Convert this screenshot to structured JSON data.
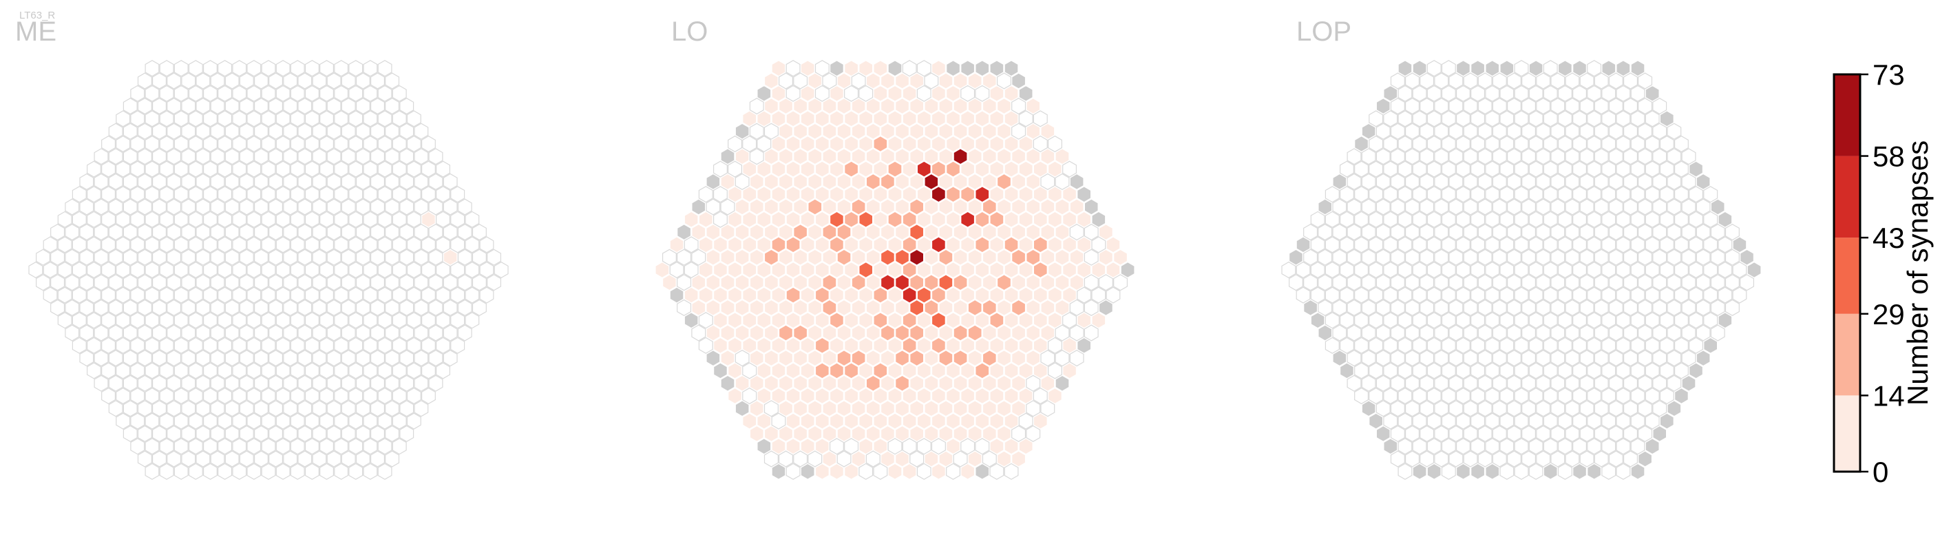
{
  "figure": {
    "supertitle": "LT63_R",
    "panels": [
      {
        "title": "ME"
      },
      {
        "title": "LO"
      },
      {
        "title": "LOP"
      }
    ]
  },
  "colors": {
    "empty_hex_stroke": "#d9d9d9",
    "empty_hex_fill": "#ffffff",
    "missing_hex": "#cccccc",
    "bins": [
      "#fdebe3",
      "#fbb39a",
      "#f4694a",
      "#d42c26",
      "#a50f15"
    ]
  },
  "chart_data": {
    "type": "heatmap",
    "description_of_marks": "hexagonal column map; each hex colored by synapse count bin",
    "panels": [
      {
        "title": "ME",
        "grid_radius": 16,
        "counts": [
          {
            "q": 13,
            "r": -4,
            "bin": 1
          },
          {
            "q": 13,
            "r": -1,
            "bin": 1
          }
        ],
        "missing": []
      },
      {
        "title": "LO",
        "grid_radius": 16,
        "coverage": "dense light-red coverage across most columns with darker hotspots near center",
        "hotspots": [
          {
            "q": 6,
            "r": -8,
            "bin": 4
          },
          {
            "q": 6,
            "r": -7,
            "bin": 5
          },
          {
            "q": 6,
            "r": -6,
            "bin": 5
          },
          {
            "q": 2,
            "r": -1,
            "bin": 5
          },
          {
            "q": 9,
            "r": -9,
            "bin": 5
          },
          {
            "q": 9,
            "r": -6,
            "bin": 4
          },
          {
            "q": 4,
            "r": -2,
            "bin": 4
          },
          {
            "q": 7,
            "r": -4,
            "bin": 4
          }
        ],
        "missing_count_approx": 30
      },
      {
        "title": "LOP",
        "grid_radius": 16,
        "counts": [],
        "missing": "ring of grey columns along the outer boundary"
      }
    ],
    "colorbar": {
      "label": "Number of synapses",
      "ticks": [
        0,
        14,
        29,
        43,
        58,
        73
      ],
      "bins": [
        {
          "from": 0,
          "to": 14
        },
        {
          "from": 14,
          "to": 29
        },
        {
          "from": 29,
          "to": 43
        },
        {
          "from": 43,
          "to": 58
        },
        {
          "from": 58,
          "to": 73
        }
      ],
      "range": [
        0,
        73
      ]
    }
  }
}
